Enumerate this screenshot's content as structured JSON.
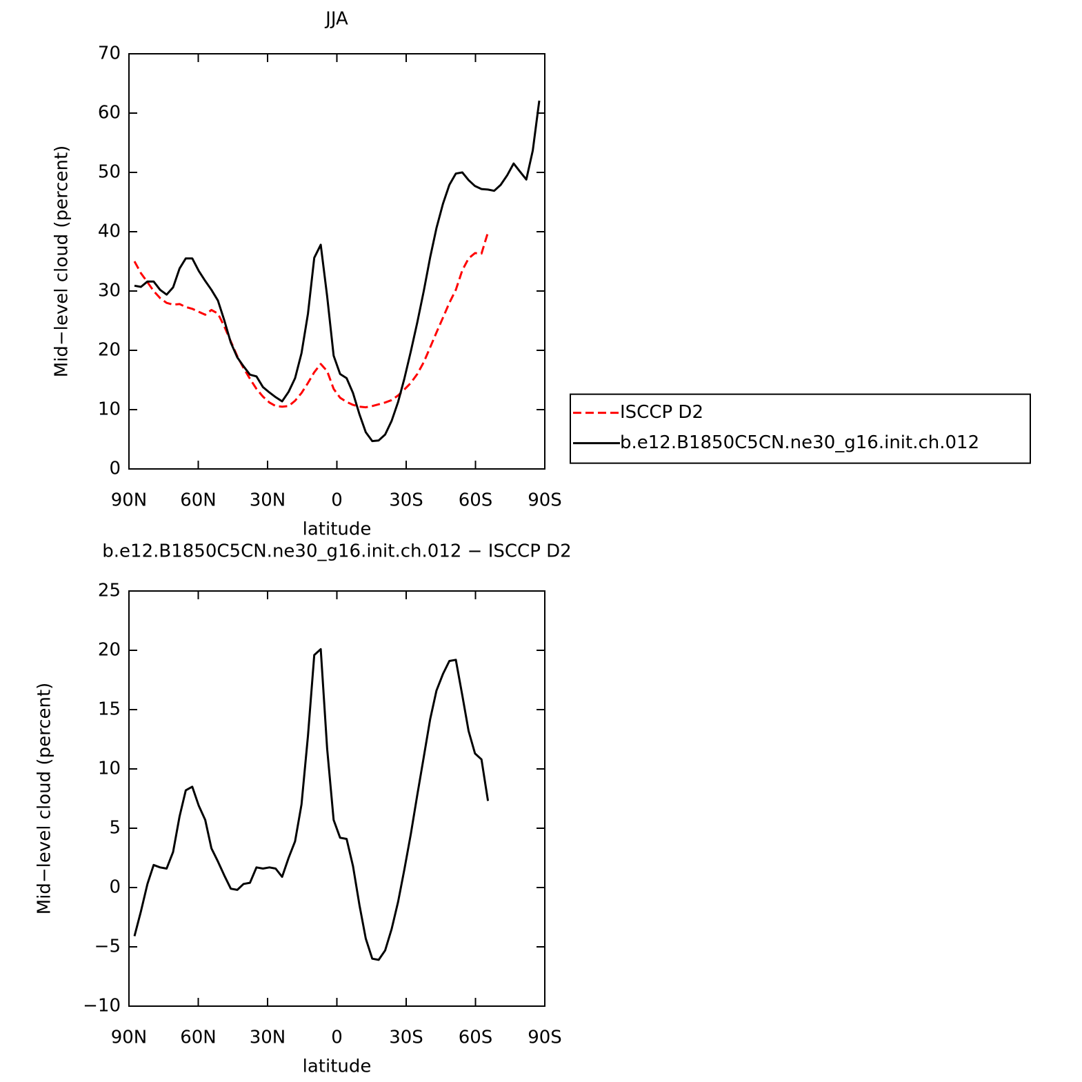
{
  "chart_data": [
    {
      "type": "line",
      "title": "JJA",
      "x_label": "latitude",
      "y_label": "Mid−level cloud (percent)",
      "x": [
        87.6,
        84.8,
        82.0,
        79.3,
        76.5,
        73.7,
        70.9,
        68.1,
        65.4,
        62.6,
        59.8,
        57.0,
        54.3,
        51.5,
        48.7,
        45.9,
        43.1,
        40.4,
        37.6,
        34.8,
        32.0,
        29.2,
        26.5,
        23.7,
        20.9,
        18.1,
        15.3,
        12.5,
        9.8,
        7.0,
        4.2,
        1.4,
        -1.4,
        -4.2,
        -7.0,
        -9.8,
        -12.5,
        -15.3,
        -18.1,
        -20.9,
        -23.7,
        -26.5,
        -29.2,
        -32.0,
        -34.8,
        -37.6,
        -40.4,
        -43.1,
        -45.9,
        -48.7,
        -51.5,
        -54.3,
        -57.0,
        -59.8,
        -62.6,
        -65.4,
        -68.1,
        -70.9,
        -73.7,
        -76.5,
        -79.3,
        -82.0,
        -84.8,
        -87.6
      ],
      "series": [
        {
          "name": "ISCCP D2",
          "color": "#ff0000",
          "linestyle": "dashed",
          "values": [
            35.0,
            33.0,
            31.5,
            30.0,
            28.8,
            28.0,
            27.7,
            27.8,
            27.3,
            27.0,
            26.5,
            26.0,
            26.8,
            26.2,
            24.0,
            21.5,
            19.0,
            17.0,
            15.2,
            13.5,
            12.2,
            11.2,
            10.6,
            10.5,
            10.6,
            11.5,
            12.8,
            14.5,
            16.3,
            17.7,
            16.5,
            13.5,
            12.0,
            11.3,
            10.8,
            10.5,
            10.4,
            10.6,
            10.9,
            11.2,
            11.6,
            12.4,
            13.4,
            14.5,
            16.0,
            18.0,
            20.5,
            23.0,
            25.5,
            28.0,
            30.2,
            33.5,
            35.5,
            36.4,
            36.3,
            39.9,
            null,
            null,
            null,
            null,
            null,
            null,
            null,
            null
          ]
        },
        {
          "name": "b.e12.B1850C5CN.ne30_g16.init.ch.012",
          "color": "#000000",
          "linestyle": "solid",
          "values": [
            30.9,
            30.7,
            31.6,
            31.6,
            30.2,
            29.4,
            30.6,
            33.8,
            35.5,
            35.5,
            33.4,
            31.7,
            30.2,
            28.4,
            25.0,
            21.3,
            18.8,
            17.3,
            15.9,
            15.6,
            13.8,
            12.9,
            12.1,
            11.4,
            13.0,
            15.3,
            19.5,
            26.2,
            35.6,
            37.8,
            29.1,
            19.1,
            16.0,
            15.3,
            12.8,
            9.2,
            6.2,
            4.7,
            4.8,
            5.8,
            8.1,
            11.3,
            15.2,
            19.8,
            24.7,
            30.0,
            35.7,
            40.6,
            44.7,
            47.9,
            49.8,
            50.0,
            48.7,
            47.7,
            47.2,
            47.1,
            46.9,
            47.9,
            49.5,
            51.5,
            50.1,
            48.8,
            53.7,
            62.1
          ]
        }
      ],
      "xlim": [
        90,
        -90
      ],
      "xticks": [
        {
          "value": 90,
          "label": "90N"
        },
        {
          "value": 60,
          "label": "60N"
        },
        {
          "value": 30,
          "label": "30N"
        },
        0,
        {
          "value": -30,
          "label": "30S"
        },
        {
          "value": -60,
          "label": "60S"
        },
        {
          "value": -90,
          "label": "90S"
        }
      ],
      "ylim": [
        0,
        70
      ],
      "yticks": [
        0,
        10,
        20,
        30,
        40,
        50,
        60,
        70
      ],
      "legend": "right"
    },
    {
      "type": "line",
      "title": "b.e12.B1850C5CN.ne30_g16.init.ch.012 − ISCCP D2",
      "x_label": "latitude",
      "y_label": "Mid−level cloud (percent)",
      "x": [
        87.6,
        84.8,
        82.0,
        79.3,
        76.5,
        73.7,
        70.9,
        68.1,
        65.4,
        62.6,
        59.8,
        57.0,
        54.3,
        51.5,
        48.7,
        45.9,
        43.1,
        40.4,
        37.6,
        34.8,
        32.0,
        29.2,
        26.5,
        23.7,
        20.9,
        18.1,
        15.3,
        12.5,
        9.8,
        7.0,
        4.2,
        1.4,
        -1.4,
        -4.2,
        -7.0,
        -9.8,
        -12.5,
        -15.3,
        -18.1,
        -20.9,
        -23.7,
        -26.5,
        -29.2,
        -32.0,
        -34.8,
        -37.6,
        -40.4,
        -43.1,
        -45.9,
        -48.7,
        -51.5,
        -54.3,
        -57.0,
        -59.8,
        -62.6,
        -65.4,
        -68.1,
        -70.9,
        -73.7,
        -76.5,
        -79.3,
        -82.0,
        -84.8,
        -87.6
      ],
      "series": [
        {
          "color": "#000000",
          "linestyle": "solid",
          "values": [
            -4.1,
            -2.0,
            0.3,
            1.9,
            1.7,
            1.6,
            3.0,
            6.0,
            8.2,
            8.5,
            6.9,
            5.7,
            3.3,
            2.2,
            1.0,
            -0.1,
            -0.2,
            0.3,
            0.4,
            1.7,
            1.6,
            1.7,
            1.6,
            0.9,
            2.5,
            3.9,
            7.0,
            12.8,
            19.6,
            20.1,
            11.7,
            5.7,
            4.2,
            4.1,
            1.8,
            -1.5,
            -4.3,
            -6.0,
            -6.1,
            -5.3,
            -3.5,
            -1.2,
            1.5,
            4.5,
            7.8,
            11.0,
            14.2,
            16.6,
            18.0,
            19.1,
            19.2,
            16.2,
            13.2,
            11.3,
            10.8,
            7.3,
            null,
            null,
            null,
            null,
            null,
            null,
            null,
            null
          ]
        }
      ],
      "xlim": [
        90,
        -90
      ],
      "xticks": [
        {
          "value": 90,
          "label": "90N"
        },
        {
          "value": 60,
          "label": "60N"
        },
        {
          "value": 30,
          "label": "30N"
        },
        0,
        {
          "value": -30,
          "label": "30S"
        },
        {
          "value": -60,
          "label": "60S"
        },
        {
          "value": -90,
          "label": "90S"
        }
      ],
      "ylim": [
        -10,
        25
      ],
      "yticks": [
        {
          "value": -10,
          "label": "−10"
        },
        {
          "value": -5,
          "label": "−5"
        },
        0,
        5,
        10,
        15,
        20,
        25
      ]
    }
  ]
}
